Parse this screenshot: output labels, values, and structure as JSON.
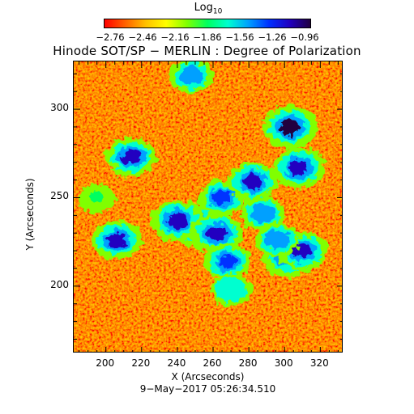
{
  "colorbar": {
    "label": "Log",
    "label_sub": "10",
    "ticks": [
      "−2.76",
      "−2.46",
      "−2.16",
      "−1.86",
      "−1.56",
      "−1.26",
      "−0.96"
    ],
    "range": [
      -2.76,
      -0.96
    ],
    "colors": [
      "#ff0000",
      "#ff6000",
      "#ffc000",
      "#ffff00",
      "#80ff00",
      "#00ff60",
      "#00ffd0",
      "#00a0ff",
      "#0030ff",
      "#2000c0",
      "#200040"
    ]
  },
  "chart_data": {
    "type": "heatmap",
    "title": "Hinode SOT/SP − MERLIN : Degree of Polarization",
    "xlabel": "X (Arcseconds)",
    "ylabel": "Y (Arcseconds)",
    "xlim": [
      182,
      333
    ],
    "ylim": [
      162,
      327
    ],
    "xticks": [
      200,
      220,
      240,
      260,
      280,
      300,
      320
    ],
    "yticks": [
      200,
      250,
      300
    ],
    "color_scale": "log10",
    "background_level": -2.7,
    "features": [
      {
        "x": 252,
        "y": 234,
        "level": -1.0
      },
      {
        "x": 240,
        "y": 237,
        "level": -1.1
      },
      {
        "x": 262,
        "y": 230,
        "level": -1.1
      },
      {
        "x": 303,
        "y": 217,
        "level": -1.0
      },
      {
        "x": 310,
        "y": 220,
        "level": -1.2
      },
      {
        "x": 308,
        "y": 267,
        "level": -1.1
      },
      {
        "x": 303,
        "y": 290,
        "level": -1.0
      },
      {
        "x": 206,
        "y": 226,
        "level": -1.2
      },
      {
        "x": 214,
        "y": 273,
        "level": -1.2
      },
      {
        "x": 265,
        "y": 250,
        "level": -1.4
      },
      {
        "x": 282,
        "y": 259,
        "level": -1.2
      },
      {
        "x": 268,
        "y": 214,
        "level": -1.4
      },
      {
        "x": 270,
        "y": 198,
        "level": -1.6
      },
      {
        "x": 248,
        "y": 319,
        "level": -1.5
      },
      {
        "x": 288,
        "y": 241,
        "level": -1.5
      },
      {
        "x": 296,
        "y": 226,
        "level": -1.5
      },
      {
        "x": 195,
        "y": 250,
        "level": -1.8
      }
    ]
  },
  "footer_date": "9−May−2017 05:26:34.510"
}
